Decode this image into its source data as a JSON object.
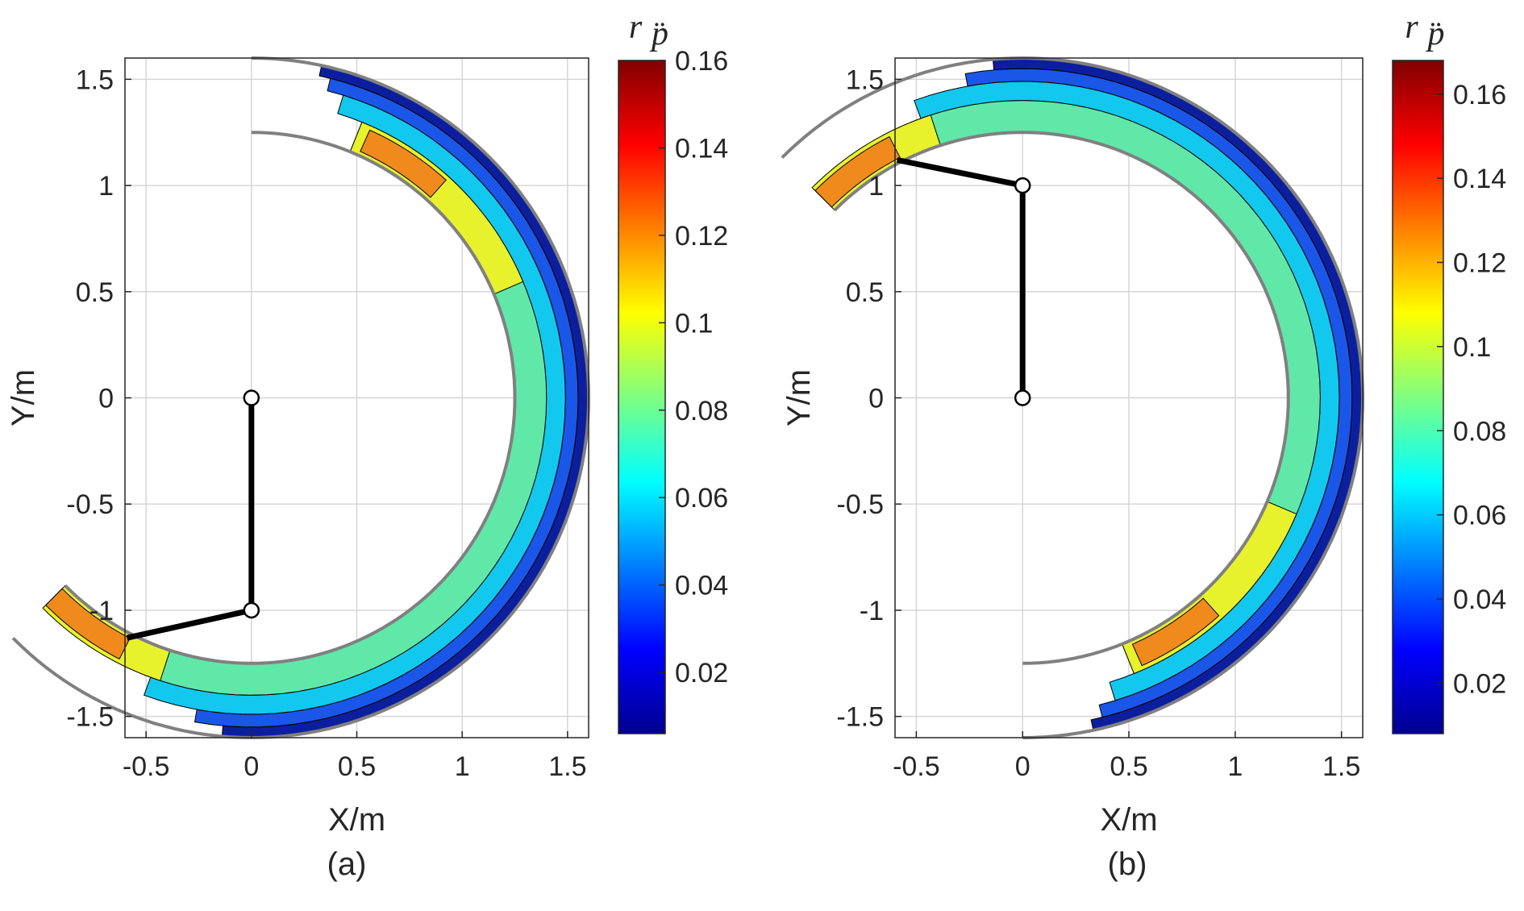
{
  "colors": {
    "levels": [
      "#0b1f9e",
      "#1a56e8",
      "#12c8ee",
      "#60e8a8",
      "#e8f22c",
      "#f08a1c",
      "#dd2a18"
    ],
    "boundary": "#808080",
    "grid": "#d6d6d6",
    "link": "#000000"
  },
  "chart_data": [
    {
      "type": "contour",
      "panel_label": "(a)",
      "xlabel": "X/m",
      "ylabel": "Y/m",
      "xlim": [
        -0.6,
        1.6
      ],
      "ylim": [
        -1.6,
        1.6
      ],
      "xticks": [
        -0.5,
        0,
        0.5,
        1,
        1.5
      ],
      "xtick_labels": [
        "-0.5",
        "0",
        "0.5",
        "1",
        "1.5"
      ],
      "yticks": [
        -1.5,
        -1,
        -0.5,
        0,
        0.5,
        1,
        1.5
      ],
      "ytick_labels": [
        "-1.5",
        "-1",
        "-0.5",
        "0",
        "0.5",
        "1",
        "1.5"
      ],
      "grid": true,
      "colorbar": {
        "title": "r",
        "title_sub": "p̈",
        "range": [
          0.006,
          0.16
        ],
        "ticks": [
          0.02,
          0.04,
          0.06,
          0.08,
          0.1,
          0.12,
          0.14,
          0.16
        ],
        "tick_labels": [
          "0.02",
          "0.04",
          "0.06",
          "0.08",
          "0.1",
          "0.12",
          "0.14",
          "0.16"
        ]
      },
      "workspace": {
        "shoulder": [
          0,
          0
        ],
        "elbow": [
          0,
          -1
        ],
        "end_effector": [
          -0.59,
          -1.13
        ],
        "outer_radius": 1.6,
        "inner_radius": 1.25,
        "sweep_deg": [
          -135,
          90
        ]
      },
      "bands": [
        {
          "level_max": 0.03,
          "r_start": 1.55,
          "r_end": 1.6,
          "theta_start_deg": -95,
          "theta_end_deg": 78
        },
        {
          "level_max": 0.05,
          "r_start": 1.49,
          "r_end": 1.55,
          "theta_start_deg": -100,
          "theta_end_deg": 76
        },
        {
          "level_max": 0.07,
          "r_start": 1.4,
          "r_end": 1.49,
          "theta_start_deg": -110,
          "theta_end_deg": 73
        },
        {
          "level_max": 0.09,
          "r_start": 1.25,
          "r_end": 1.4,
          "theta_start_deg": -118,
          "theta_end_deg": 68
        },
        {
          "level_max": 0.11,
          "r_start": 1.25,
          "r_end": 1.4,
          "theta_start_deg": 23,
          "theta_end_deg": 68
        },
        {
          "level_max": 0.11,
          "r_start": 1.25,
          "r_end": 1.4,
          "theta_start_deg": -135,
          "theta_end_deg": -108
        },
        {
          "level_max": 0.13,
          "r_start": 1.27,
          "r_end": 1.38,
          "theta_start_deg": 48,
          "theta_end_deg": 66
        },
        {
          "level_max": 0.13,
          "r_start": 1.27,
          "r_end": 1.38,
          "theta_start_deg": -135,
          "theta_end_deg": -117
        }
      ]
    },
    {
      "type": "contour",
      "panel_label": "(b)",
      "xlabel": "X/m",
      "ylabel": "Y/m",
      "xlim": [
        -0.6,
        1.6
      ],
      "ylim": [
        -1.6,
        1.6
      ],
      "xticks": [
        -0.5,
        0,
        0.5,
        1,
        1.5
      ],
      "xtick_labels": [
        "-0.5",
        "0",
        "0.5",
        "1",
        "1.5"
      ],
      "yticks": [
        -1.5,
        -1,
        -0.5,
        0,
        0.5,
        1,
        1.5
      ],
      "ytick_labels": [
        "-1.5",
        "-1",
        "-0.5",
        "0",
        "0.5",
        "1",
        "1.5"
      ],
      "grid": true,
      "colorbar": {
        "title": "r",
        "title_sub": "p̈",
        "range": [
          0.008,
          0.168
        ],
        "ticks": [
          0.02,
          0.04,
          0.06,
          0.08,
          0.1,
          0.12,
          0.14,
          0.16
        ],
        "tick_labels": [
          "0.02",
          "0.04",
          "0.06",
          "0.08",
          "0.1",
          "0.12",
          "0.14",
          "0.16"
        ]
      },
      "workspace": {
        "shoulder": [
          0,
          0
        ],
        "elbow": [
          0,
          1
        ],
        "end_effector": [
          -0.59,
          1.12
        ],
        "outer_radius": 1.6,
        "inner_radius": 1.25,
        "sweep_deg": [
          -90,
          135
        ]
      },
      "bands": [
        {
          "level_max": 0.03,
          "r_start": 1.55,
          "r_end": 1.6,
          "theta_start_deg": -78,
          "theta_end_deg": 95
        },
        {
          "level_max": 0.05,
          "r_start": 1.49,
          "r_end": 1.55,
          "theta_start_deg": -76,
          "theta_end_deg": 100
        },
        {
          "level_max": 0.07,
          "r_start": 1.4,
          "r_end": 1.49,
          "theta_start_deg": -73,
          "theta_end_deg": 110
        },
        {
          "level_max": 0.09,
          "r_start": 1.25,
          "r_end": 1.4,
          "theta_start_deg": -68,
          "theta_end_deg": 118
        },
        {
          "level_max": 0.11,
          "r_start": 1.25,
          "r_end": 1.4,
          "theta_start_deg": -68,
          "theta_end_deg": -23
        },
        {
          "level_max": 0.11,
          "r_start": 1.25,
          "r_end": 1.4,
          "theta_start_deg": 108,
          "theta_end_deg": 135
        },
        {
          "level_max": 0.13,
          "r_start": 1.27,
          "r_end": 1.38,
          "theta_start_deg": -66,
          "theta_end_deg": -48
        },
        {
          "level_max": 0.13,
          "r_start": 1.27,
          "r_end": 1.38,
          "theta_start_deg": 117,
          "theta_end_deg": 135
        }
      ]
    }
  ]
}
